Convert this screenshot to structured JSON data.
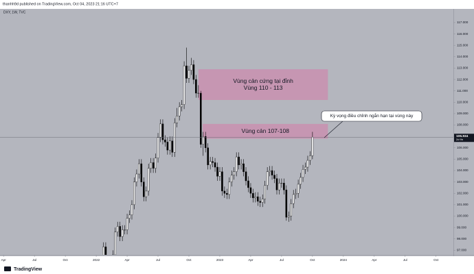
{
  "header": "thanhh9d published on TradingView.com, Oct 04, 2023 21:16 UTC+7",
  "footer": "TradingView",
  "chart_data": {
    "type": "candlestick",
    "title": "DXY, 1W, TVC",
    "up_color": "#ffffff",
    "down_color": "#000000",
    "wick_color": "#000000",
    "ohlc": [
      [
        95.9,
        96.3,
        95.3,
        95.7
      ],
      [
        95.7,
        96.1,
        94.8,
        95.2
      ],
      [
        95.2,
        96.1,
        94.8,
        95.7
      ],
      [
        95.7,
        97.7,
        95.3,
        97.3
      ],
      [
        97.3,
        97.7,
        95.1,
        95.5
      ],
      [
        95.5,
        96.4,
        95.1,
        96.0
      ],
      [
        96.0,
        96.4,
        95.6,
        96.0
      ],
      [
        96.0,
        97.0,
        95.6,
        96.6
      ],
      [
        96.6,
        99.0,
        96.2,
        98.6
      ],
      [
        98.6,
        99.5,
        98.2,
        99.1
      ],
      [
        99.1,
        99.5,
        97.8,
        98.2
      ],
      [
        98.2,
        99.2,
        97.8,
        98.8
      ],
      [
        98.8,
        99.2,
        98.4,
        98.8
      ],
      [
        98.8,
        100.2,
        98.4,
        99.8
      ],
      [
        99.8,
        100.5,
        99.4,
        100.1
      ],
      [
        100.1,
        101.4,
        99.7,
        101.0
      ],
      [
        101.0,
        103.4,
        100.6,
        103.0
      ],
      [
        103.0,
        104.1,
        102.6,
        103.7
      ],
      [
        103.7,
        105.0,
        103.3,
        104.6
      ],
      [
        104.6,
        105.0,
        102.6,
        103.0
      ],
      [
        103.0,
        103.4,
        101.3,
        101.7
      ],
      [
        101.7,
        102.6,
        101.3,
        102.2
      ],
      [
        102.2,
        104.6,
        101.8,
        104.2
      ],
      [
        104.2,
        105.1,
        103.8,
        104.7
      ],
      [
        104.7,
        105.1,
        103.8,
        104.2
      ],
      [
        104.2,
        105.5,
        103.8,
        105.1
      ],
      [
        105.1,
        107.3,
        104.7,
        106.9
      ],
      [
        106.9,
        108.5,
        106.5,
        108.1
      ],
      [
        108.1,
        108.5,
        106.3,
        106.7
      ],
      [
        106.7,
        107.1,
        106.1,
        106.5
      ],
      [
        106.5,
        106.9,
        105.4,
        105.8
      ],
      [
        105.8,
        107.0,
        105.4,
        106.6
      ],
      [
        106.6,
        107.0,
        105.2,
        105.6
      ],
      [
        105.6,
        108.6,
        105.2,
        108.2
      ],
      [
        108.2,
        109.5,
        107.8,
        108.8
      ],
      [
        108.8,
        110.0,
        108.4,
        109.6
      ],
      [
        109.6,
        110.2,
        109.2,
        109.8
      ],
      [
        109.8,
        113.6,
        109.4,
        113.2
      ],
      [
        113.2,
        114.8,
        111.7,
        112.1
      ],
      [
        112.1,
        113.2,
        111.7,
        112.8
      ],
      [
        112.8,
        113.9,
        112.4,
        113.3
      ],
      [
        113.3,
        113.7,
        111.6,
        112.0
      ],
      [
        112.0,
        112.4,
        110.4,
        110.8
      ],
      [
        110.8,
        111.5,
        110.4,
        110.8
      ],
      [
        110.8,
        111.0,
        106.0,
        106.3
      ],
      [
        106.3,
        107.4,
        105.3,
        107.0
      ],
      [
        107.0,
        107.4,
        105.6,
        106.0
      ],
      [
        106.0,
        106.4,
        104.1,
        104.5
      ],
      [
        104.5,
        105.2,
        104.1,
        104.8
      ],
      [
        104.8,
        105.2,
        104.3,
        104.7
      ],
      [
        104.7,
        105.1,
        103.9,
        104.3
      ],
      [
        104.3,
        104.7,
        103.1,
        103.5
      ],
      [
        103.5,
        104.3,
        103.1,
        103.9
      ],
      [
        103.9,
        104.3,
        101.8,
        102.2
      ],
      [
        102.2,
        102.6,
        101.6,
        102.0
      ],
      [
        102.0,
        102.4,
        101.5,
        101.9
      ],
      [
        101.9,
        103.4,
        101.5,
        103.0
      ],
      [
        103.0,
        104.0,
        102.6,
        103.6
      ],
      [
        103.6,
        104.3,
        103.2,
        103.9
      ],
      [
        103.9,
        105.6,
        103.5,
        105.2
      ],
      [
        105.2,
        105.6,
        104.1,
        104.5
      ],
      [
        104.5,
        105.0,
        104.1,
        104.6
      ],
      [
        104.6,
        105.0,
        103.5,
        103.9
      ],
      [
        103.9,
        104.3,
        102.7,
        103.1
      ],
      [
        103.1,
        103.5,
        102.1,
        102.5
      ],
      [
        102.5,
        102.9,
        101.6,
        102.0
      ],
      [
        102.0,
        102.4,
        101.2,
        101.6
      ],
      [
        101.6,
        102.1,
        101.2,
        101.7
      ],
      [
        101.7,
        102.1,
        100.9,
        101.3
      ],
      [
        101.3,
        101.7,
        100.8,
        101.2
      ],
      [
        101.2,
        101.9,
        100.8,
        101.5
      ],
      [
        101.5,
        103.1,
        101.1,
        102.7
      ],
      [
        102.7,
        104.3,
        102.3,
        103.9
      ],
      [
        103.9,
        104.4,
        103.5,
        104.0
      ],
      [
        104.0,
        104.4,
        103.2,
        103.6
      ],
      [
        103.6,
        104.0,
        102.9,
        103.3
      ],
      [
        103.3,
        103.7,
        101.9,
        102.3
      ],
      [
        102.3,
        103.3,
        101.9,
        102.9
      ],
      [
        102.9,
        103.3,
        102.5,
        102.9
      ],
      [
        102.9,
        103.3,
        101.9,
        102.3
      ],
      [
        102.3,
        102.7,
        99.6,
        99.9
      ],
      [
        99.9,
        100.4,
        99.5,
        100.0
      ],
      [
        100.0,
        101.5,
        99.6,
        101.1
      ],
      [
        101.1,
        102.3,
        100.7,
        101.9
      ],
      [
        101.9,
        102.4,
        101.5,
        102.0
      ],
      [
        102.0,
        103.2,
        101.6,
        102.8
      ],
      [
        102.8,
        103.8,
        102.4,
        103.4
      ],
      [
        103.4,
        104.5,
        103.0,
        104.1
      ],
      [
        104.1,
        104.7,
        103.7,
        104.3
      ],
      [
        104.3,
        105.3,
        103.9,
        104.9
      ],
      [
        104.9,
        105.7,
        104.5,
        105.3
      ],
      [
        105.3,
        107.4,
        105.0,
        106.934
      ]
    ],
    "countdown": "2d 9h",
    "xlim": [
      -40.5,
      150.3
    ],
    "xticks": [
      {
        "value": -39,
        "label": "Apr"
      },
      {
        "value": -26,
        "label": "Jul"
      },
      {
        "value": -13,
        "label": "Oct"
      },
      {
        "value": 0,
        "label": "2022"
      },
      {
        "value": 13,
        "label": "Apr"
      },
      {
        "value": 26,
        "label": "Jul"
      },
      {
        "value": 39,
        "label": "Oct"
      },
      {
        "value": 52,
        "label": "2023"
      },
      {
        "value": 65,
        "label": "Apr"
      },
      {
        "value": 78,
        "label": "Jul"
      },
      {
        "value": 91,
        "label": "Oct"
      },
      {
        "value": 104,
        "label": "2024"
      },
      {
        "value": 117,
        "label": "Apr"
      },
      {
        "value": 130,
        "label": "Jul"
      },
      {
        "value": 143,
        "label": "Oct"
      }
    ],
    "ylim": [
      96.6,
      118.2
    ],
    "yticks": [
      {
        "value": 97,
        "label": "97.000"
      },
      {
        "value": 98,
        "label": "98.000"
      },
      {
        "value": 99,
        "label": "99.000"
      },
      {
        "value": 100,
        "label": "100.000"
      },
      {
        "value": 101,
        "label": "101.000"
      },
      {
        "value": 102,
        "label": "102.000"
      },
      {
        "value": 103,
        "label": "103.000"
      },
      {
        "value": 104,
        "label": "104.000"
      },
      {
        "value": 105,
        "label": "105.000"
      },
      {
        "value": 106,
        "label": "106.000"
      },
      {
        "value": 107,
        "label": "107.000"
      },
      {
        "value": 108,
        "label": "108.000"
      },
      {
        "value": 109,
        "label": "109.000"
      },
      {
        "value": 110,
        "label": "110.000"
      },
      {
        "value": 111,
        "label": "111.000"
      },
      {
        "value": 112,
        "label": "112.000"
      },
      {
        "value": 113,
        "label": "113.000"
      },
      {
        "value": 114,
        "label": "114.000"
      },
      {
        "value": 115,
        "label": "115.000"
      },
      {
        "value": 116,
        "label": "116.000"
      },
      {
        "value": 117,
        "label": "117.000"
      }
    ],
    "zones": [
      {
        "text": [
          "Vùng cản cứng tại đỉnh",
          "Vùng 110 - 113"
        ],
        "top": 112.9,
        "bottom": 110.2,
        "start": 43,
        "end": 97.5,
        "color": "#c991b0"
      },
      {
        "text": [
          "Vùng cản 107-108"
        ],
        "top": 108.1,
        "bottom": 106.8,
        "start": 44.8,
        "end": 97.5,
        "color": "#c991b0"
      }
    ],
    "annotation": "Kỳ vọng điều chỉnh ngắn hạn tại vùng này"
  }
}
